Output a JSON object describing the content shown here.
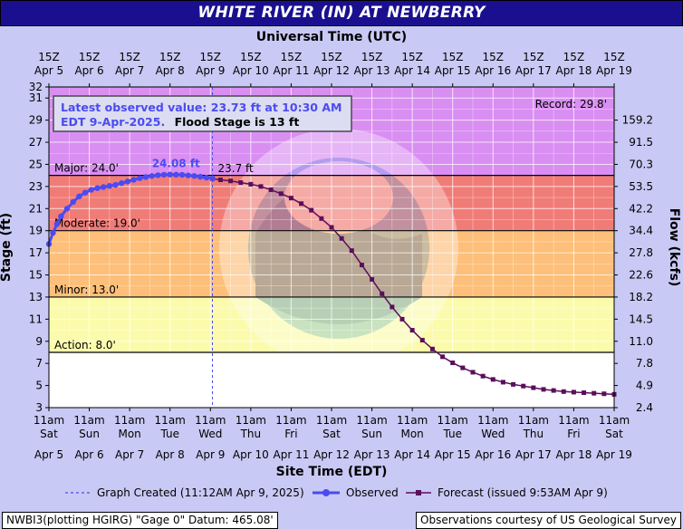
{
  "title": "WHITE RIVER (IN) AT NEWBERRY",
  "colors": {
    "record": "#d98ef2",
    "major": "#f07c77",
    "moderate": "#fdbf79",
    "minor": "#fbfbab",
    "action": "#ffffff",
    "observed": "#4b4bf0",
    "forecast": "#5b0e5b",
    "title_bg": "#1a108f",
    "page_bg": "#c9c9f5"
  },
  "chart_data": {
    "type": "line",
    "top_axis_label": "Universal Time (UTC)",
    "top_ticks": [
      {
        "hour": "15Z",
        "date": "Apr 5"
      },
      {
        "hour": "15Z",
        "date": "Apr 6"
      },
      {
        "hour": "15Z",
        "date": "Apr 7"
      },
      {
        "hour": "15Z",
        "date": "Apr 8"
      },
      {
        "hour": "15Z",
        "date": "Apr 9"
      },
      {
        "hour": "15Z",
        "date": "Apr 10"
      },
      {
        "hour": "15Z",
        "date": "Apr 11"
      },
      {
        "hour": "15Z",
        "date": "Apr 12"
      },
      {
        "hour": "15Z",
        "date": "Apr 13"
      },
      {
        "hour": "15Z",
        "date": "Apr 14"
      },
      {
        "hour": "15Z",
        "date": "Apr 15"
      },
      {
        "hour": "15Z",
        "date": "Apr 16"
      },
      {
        "hour": "15Z",
        "date": "Apr 17"
      },
      {
        "hour": "15Z",
        "date": "Apr 18"
      },
      {
        "hour": "15Z",
        "date": "Apr 19"
      }
    ],
    "bottom_axis_label": "Site Time (EDT)",
    "bottom_ticks": [
      {
        "time": "11am",
        "day": "Sat",
        "date": "Apr 5"
      },
      {
        "time": "11am",
        "day": "Sun",
        "date": "Apr 6"
      },
      {
        "time": "11am",
        "day": "Mon",
        "date": "Apr 7"
      },
      {
        "time": "11am",
        "day": "Tue",
        "date": "Apr 8"
      },
      {
        "time": "11am",
        "day": "Wed",
        "date": "Apr 9"
      },
      {
        "time": "11am",
        "day": "Thu",
        "date": "Apr 10"
      },
      {
        "time": "11am",
        "day": "Fri",
        "date": "Apr 11"
      },
      {
        "time": "11am",
        "day": "Sat",
        "date": "Apr 12"
      },
      {
        "time": "11am",
        "day": "Sun",
        "date": "Apr 13"
      },
      {
        "time": "11am",
        "day": "Mon",
        "date": "Apr 14"
      },
      {
        "time": "11am",
        "day": "Tue",
        "date": "Apr 15"
      },
      {
        "time": "11am",
        "day": "Wed",
        "date": "Apr 16"
      },
      {
        "time": "11am",
        "day": "Thu",
        "date": "Apr 17"
      },
      {
        "time": "11am",
        "day": "Fri",
        "date": "Apr 18"
      },
      {
        "time": "11am",
        "day": "Sat",
        "date": "Apr 19"
      }
    ],
    "ylabel": "Stage (ft)",
    "ylim": [
      3,
      32
    ],
    "yticks": [
      3,
      5,
      7,
      9,
      11,
      13,
      15,
      17,
      19,
      21,
      23,
      25,
      27,
      29,
      31,
      32
    ],
    "y2label": "Flow (kcfs)",
    "y2ticks": [
      {
        "stage": 3,
        "label": "2.4"
      },
      {
        "stage": 5,
        "label": "4.9"
      },
      {
        "stage": 7,
        "label": "7.8"
      },
      {
        "stage": 9,
        "label": "11.0"
      },
      {
        "stage": 11,
        "label": "14.5"
      },
      {
        "stage": 13,
        "label": "18.2"
      },
      {
        "stage": 15,
        "label": "22.6"
      },
      {
        "stage": 17,
        "label": "27.8"
      },
      {
        "stage": 19,
        "label": "34.4"
      },
      {
        "stage": 21,
        "label": "42.2"
      },
      {
        "stage": 23,
        "label": "53.5"
      },
      {
        "stage": 25,
        "label": "70.3"
      },
      {
        "stage": 27,
        "label": "91.5"
      },
      {
        "stage": 29,
        "label": "159.2"
      }
    ],
    "xlim": [
      0,
      14
    ],
    "grid": true,
    "flood_categories": [
      {
        "name": "record",
        "label": "Record: 29.8'",
        "stage": 29.8
      },
      {
        "name": "major",
        "label": "Major: 24.0'",
        "stage": 24.0
      },
      {
        "name": "moderate",
        "label": "Moderate: 19.0'",
        "stage": 19.0
      },
      {
        "name": "minor",
        "label": "Minor: 13.0'",
        "stage": 13.0
      },
      {
        "name": "action",
        "label": "Action: 8.0'",
        "stage": 8.0
      }
    ],
    "annotation_lines": [
      "Latest observed value: 23.73 ft at 10:30 AM",
      "EDT 9-Apr-2025."
    ],
    "annotation_flood_stage": "Flood Stage is 13 ft",
    "peak_label": "24.08 ft",
    "latest_label": "23.7 ft",
    "created_x": 4.05,
    "observed": {
      "x": [
        0.0,
        0.1,
        0.2,
        0.3,
        0.45,
        0.6,
        0.75,
        0.9,
        1.05,
        1.2,
        1.35,
        1.5,
        1.65,
        1.8,
        1.95,
        2.1,
        2.25,
        2.4,
        2.55,
        2.7,
        2.85,
        3.0,
        3.15,
        3.3,
        3.45,
        3.6,
        3.75,
        3.9,
        4.05
      ],
      "y": [
        17.8,
        18.8,
        19.6,
        20.3,
        21.0,
        21.6,
        22.1,
        22.45,
        22.7,
        22.85,
        22.95,
        23.05,
        23.15,
        23.3,
        23.45,
        23.6,
        23.75,
        23.85,
        23.95,
        24.02,
        24.06,
        24.08,
        24.07,
        24.05,
        24.0,
        23.95,
        23.88,
        23.8,
        23.73
      ]
    },
    "forecast": {
      "x": [
        4.05,
        4.25,
        4.5,
        4.75,
        5.0,
        5.25,
        5.5,
        5.75,
        6.0,
        6.25,
        6.5,
        6.75,
        7.0,
        7.25,
        7.5,
        7.75,
        8.0,
        8.25,
        8.5,
        8.75,
        9.0,
        9.25,
        9.5,
        9.75,
        10.0,
        10.25,
        10.5,
        10.75,
        11.0,
        11.25,
        11.5,
        11.75,
        12.0,
        12.25,
        12.5,
        12.75,
        13.0,
        13.25,
        13.5,
        13.75,
        14.0
      ],
      "y": [
        23.7,
        23.6,
        23.5,
        23.35,
        23.2,
        23.0,
        22.7,
        22.35,
        21.95,
        21.45,
        20.85,
        20.1,
        19.3,
        18.3,
        17.2,
        15.9,
        14.6,
        13.3,
        12.1,
        11.0,
        10.0,
        9.1,
        8.3,
        7.6,
        7.05,
        6.6,
        6.2,
        5.85,
        5.55,
        5.3,
        5.1,
        4.95,
        4.8,
        4.65,
        4.55,
        4.45,
        4.4,
        4.35,
        4.3,
        4.25,
        4.2
      ]
    },
    "legend": {
      "created": "Graph Created (11:12AM Apr 9, 2025)",
      "observed": "Observed",
      "forecast": "Forecast (issued 9:53AM Apr 9)"
    }
  },
  "footer": {
    "left": "NWBI3(plotting HGIRG) \"Gage 0\" Datum: 465.08'",
    "right": "Observations courtesy of US Geological Survey"
  }
}
